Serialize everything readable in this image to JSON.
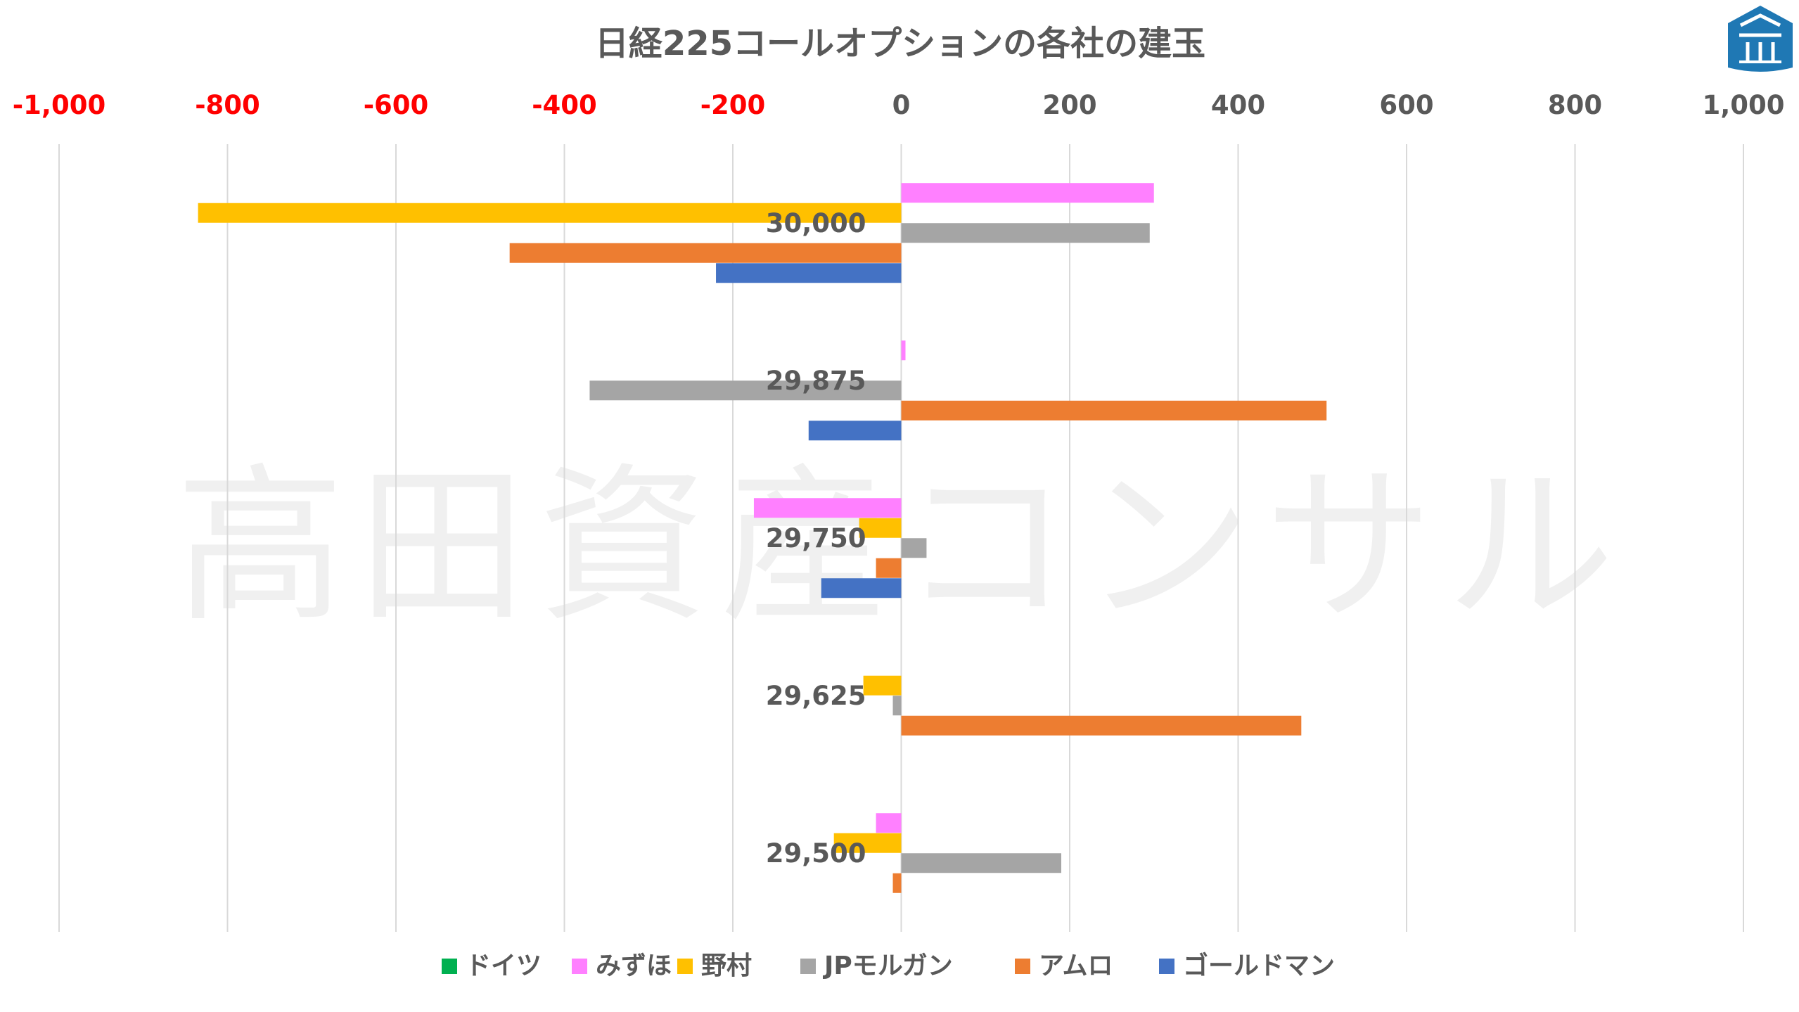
{
  "chart_data": {
    "type": "bar",
    "orientation": "horizontal",
    "title": "日経225コールオプションの各社の建玉",
    "xlim": [
      -1000,
      1000
    ],
    "xticks": [
      -1000,
      -800,
      -600,
      -400,
      -200,
      0,
      200,
      400,
      600,
      800,
      1000
    ],
    "xtick_labels": [
      "-1,000",
      "-800",
      "-600",
      "-400",
      "-200",
      "0",
      "200",
      "400",
      "600",
      "800",
      "1,000"
    ],
    "negative_tick_color": "#FF0000",
    "positive_tick_color": "#595959",
    "grid": true,
    "legend_position": "bottom",
    "categories": [
      "30,000",
      "29,875",
      "29,750",
      "29,625",
      "29,500"
    ],
    "series": [
      {
        "name": "ドイツ",
        "color": "#00B050",
        "values": [
          0,
          0,
          0,
          0,
          0
        ]
      },
      {
        "name": "みずほ",
        "color": "#FF80FF",
        "values": [
          300,
          5,
          -175,
          0,
          -30
        ]
      },
      {
        "name": "野村",
        "color": "#FFC000",
        "values": [
          -835,
          0,
          -50,
          -45,
          -80
        ]
      },
      {
        "name": "JPモルガン",
        "color": "#A5A5A5",
        "values": [
          295,
          -370,
          30,
          -10,
          190
        ]
      },
      {
        "name": "アムロ",
        "color": "#ED7D31",
        "values": [
          -465,
          505,
          -30,
          475,
          -10
        ]
      },
      {
        "name": "ゴールドマン",
        "color": "#4472C4",
        "values": [
          -220,
          -110,
          -95,
          0,
          0
        ]
      }
    ]
  },
  "watermark": "高田資産コンサル",
  "logo_icon": "takata-logo-icon"
}
